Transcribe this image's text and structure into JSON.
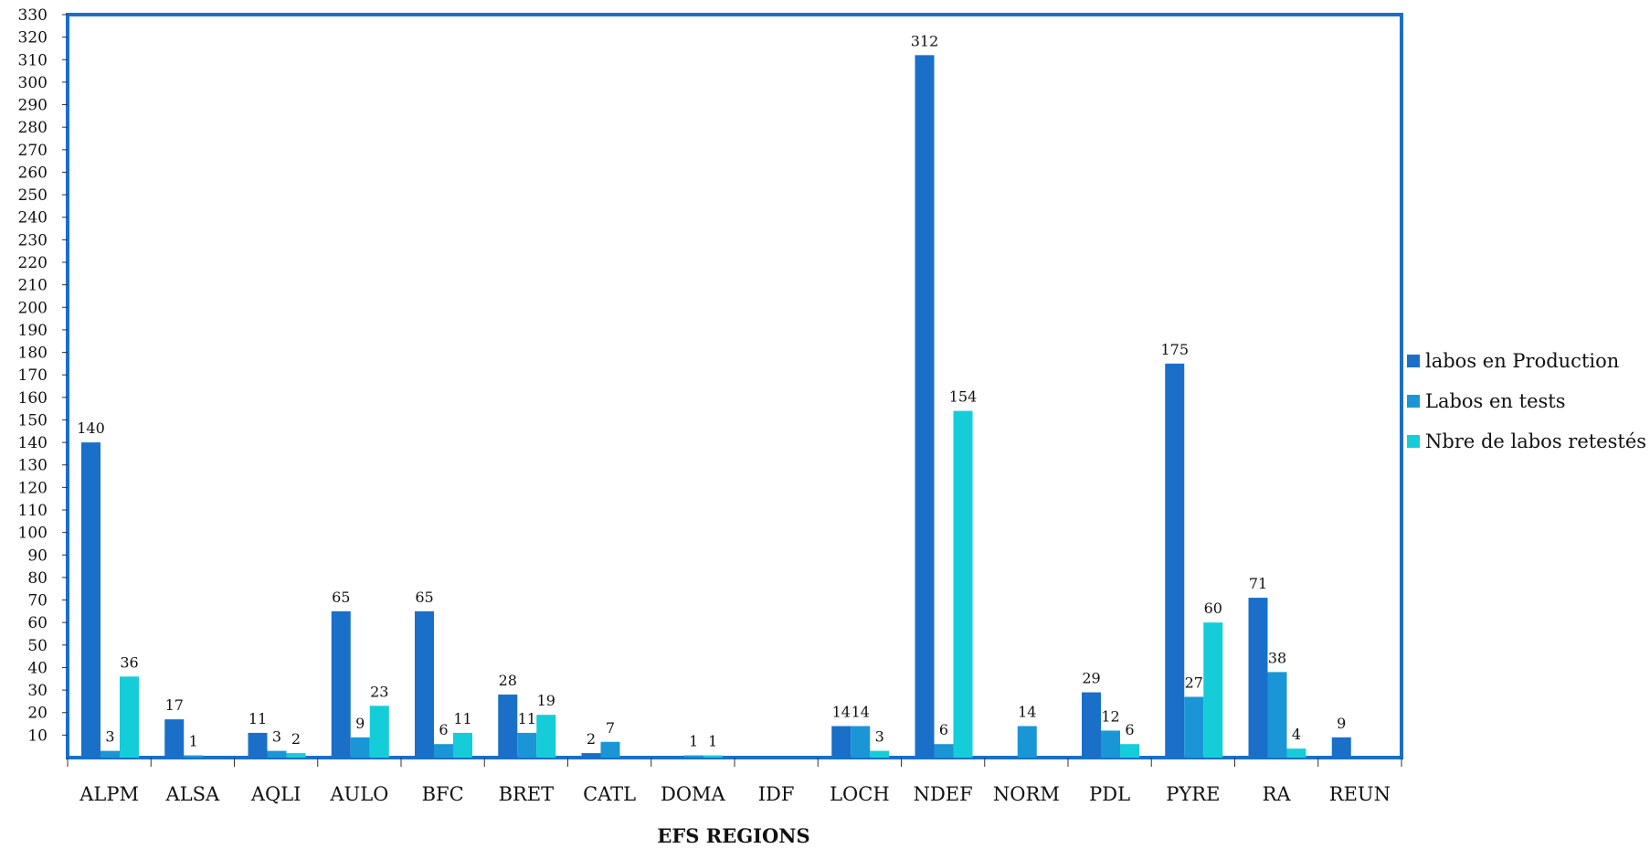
{
  "chart_data": {
    "type": "bar",
    "xlabel": "EFS REGIONS",
    "ylabel": "",
    "ylim": [
      0,
      330
    ],
    "ytick_step": 10,
    "ytick_first": 10,
    "grid": false,
    "legend_position": "right",
    "categories": [
      "ALPM",
      "ALSA",
      "AQLI",
      "AULO",
      "BFC",
      "BRET",
      "CATL",
      "DOMA",
      "IDF",
      "LOCH",
      "NDEF",
      "NORM",
      "PDL",
      "PYRE",
      "RA",
      "REUN"
    ],
    "series": [
      {
        "name": "labos en Production",
        "color": "#1a6fc9",
        "values": [
          140,
          17,
          11,
          65,
          65,
          28,
          2,
          null,
          null,
          14,
          312,
          null,
          29,
          175,
          71,
          9
        ]
      },
      {
        "name": "Labos en tests",
        "color": "#1a96d6",
        "values": [
          3,
          1,
          3,
          9,
          6,
          11,
          7,
          1,
          null,
          14,
          6,
          14,
          12,
          27,
          38,
          null
        ]
      },
      {
        "name": "Nbre de labos retestés",
        "color": "#14cdd9",
        "values": [
          36,
          null,
          2,
          23,
          11,
          19,
          null,
          1,
          null,
          3,
          154,
          null,
          6,
          60,
          4,
          null
        ]
      }
    ]
  },
  "colors": {
    "frame": "#1a6fc9",
    "axis": "#333333"
  }
}
